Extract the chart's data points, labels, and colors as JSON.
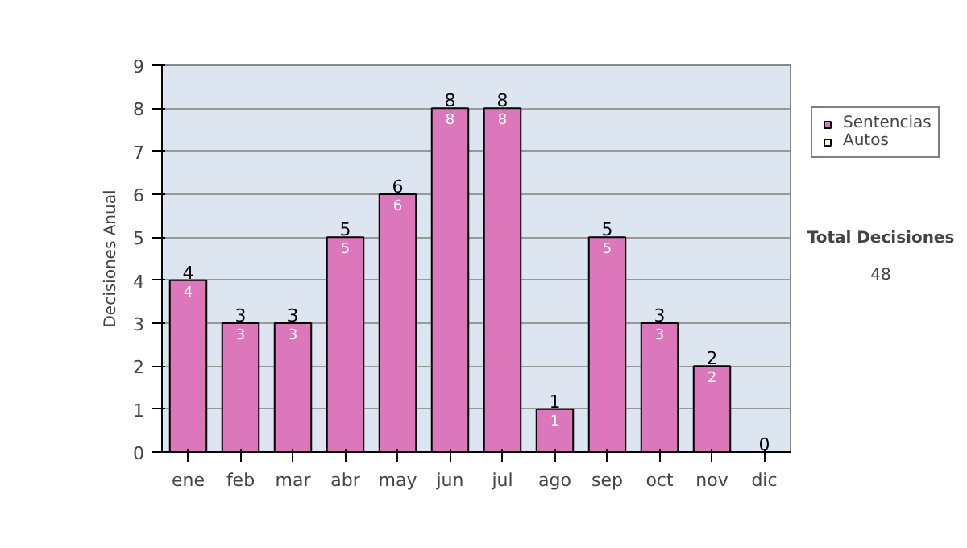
{
  "chart_data": {
    "type": "bar",
    "stacked": true,
    "ylabel": "Decisiones Anual",
    "categories": [
      "ene",
      "feb",
      "mar",
      "abr",
      "may",
      "jun",
      "jul",
      "ago",
      "sep",
      "oct",
      "nov",
      "dic"
    ],
    "series": [
      {
        "name": "Sentencias",
        "color": "#dd77bb",
        "values": [
          4,
          3,
          3,
          5,
          6,
          8,
          8,
          1,
          5,
          3,
          2,
          0
        ],
        "value_labels": [
          "4",
          "3",
          "3",
          "5",
          "6",
          "8",
          "8",
          "1",
          "5",
          "3",
          "2",
          null
        ]
      },
      {
        "name": "Autos",
        "color": "#ffffcc",
        "values": [
          0,
          0,
          0,
          0,
          0,
          0,
          0,
          0,
          0,
          0,
          0,
          0
        ]
      }
    ],
    "totals": [
      "4",
      "3",
      "3",
      "5",
      "6",
      "8",
      "8",
      "1",
      "5",
      "3",
      "2",
      "0"
    ],
    "ylim": [
      0,
      9
    ],
    "yticks": [
      0,
      1,
      2,
      3,
      4,
      5,
      6,
      7,
      8,
      9
    ],
    "grid": "y",
    "legend": "right",
    "annotations": [
      "Total Decisiones",
      "48"
    ]
  }
}
